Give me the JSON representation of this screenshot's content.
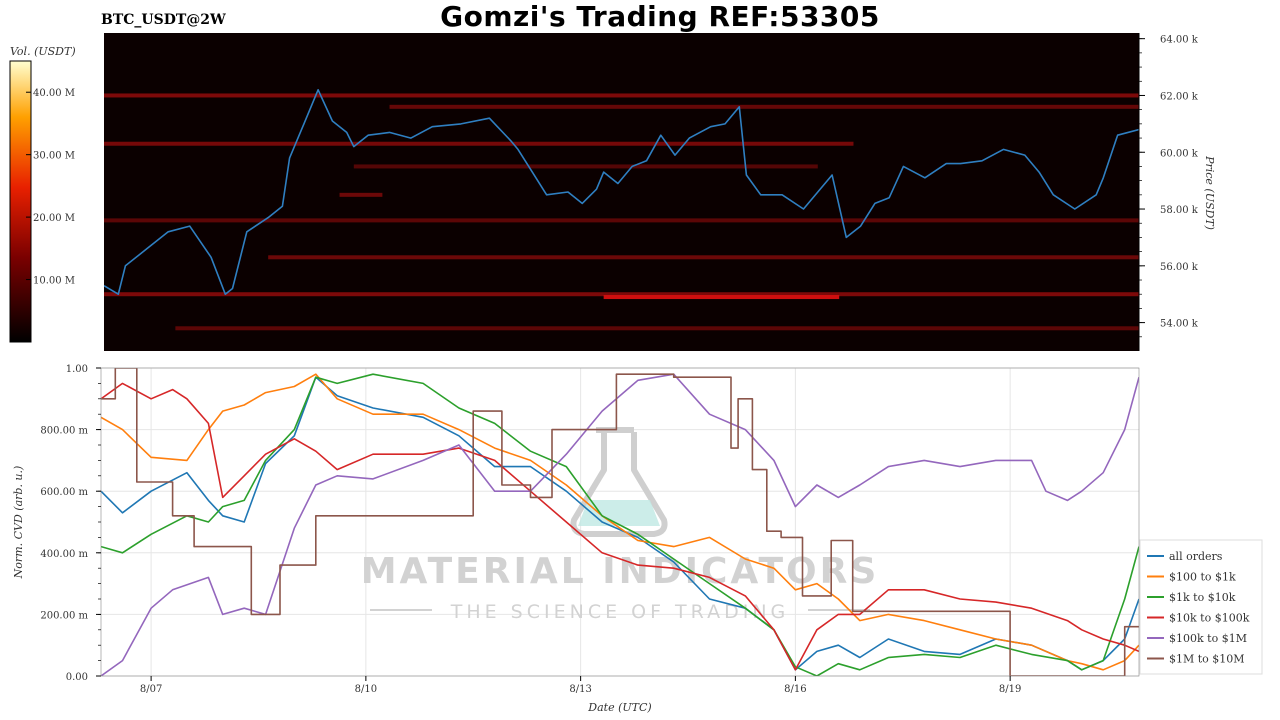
{
  "header": {
    "title": "Gomzi's Trading REF:53305",
    "symbol": "BTC_USDT@2W"
  },
  "watermark": {
    "line1": "MATERIAL INDICATORS",
    "line2": "THE SCIENCE OF TRADING"
  },
  "colors": {
    "price_line": "#2f7fc1",
    "heatmap_bg": "#0b0000",
    "heatmap_hot": "#d81010"
  },
  "chart_data": [
    {
      "type": "heatmap",
      "title": "",
      "colorbar": {
        "label": "Vol. (USDT)",
        "ticks": [
          "10.00 M",
          "20.00 M",
          "30.00 M",
          "40.00 M"
        ],
        "tick_values": [
          10,
          20,
          30,
          40
        ],
        "range": [
          0,
          45
        ]
      },
      "ylabel": "Price (USDT)",
      "ylim": [
        53000,
        64200
      ],
      "y_ticks": [
        "54.00 k",
        "56.00 k",
        "58.00 k",
        "60.00 k",
        "62.00 k",
        "64.00 k"
      ],
      "y_tick_values": [
        54000,
        56000,
        58000,
        60000,
        62000,
        64000
      ],
      "xlim": [
        0,
        14.5
      ],
      "price_series": {
        "x": [
          0.0,
          0.2,
          0.3,
          0.6,
          0.9,
          1.2,
          1.5,
          1.7,
          1.8,
          2.0,
          2.3,
          2.5,
          2.6,
          2.8,
          3.0,
          3.2,
          3.4,
          3.5,
          3.7,
          4.0,
          4.3,
          4.6,
          5.0,
          5.4,
          5.7,
          5.8,
          6.0,
          6.2,
          6.5,
          6.7,
          6.9,
          7.0,
          7.2,
          7.4,
          7.6,
          7.8,
          8.0,
          8.2,
          8.5,
          8.7,
          8.9,
          9.0,
          9.2,
          9.5,
          9.8,
          10.0,
          10.2,
          10.4,
          10.6,
          10.8,
          11.0,
          11.2,
          11.5,
          11.8,
          12.0,
          12.3,
          12.6,
          12.9,
          13.1,
          13.3,
          13.6,
          13.9,
          14.0,
          14.2,
          14.5
        ],
        "y": [
          55300,
          55000,
          56000,
          56600,
          57200,
          57400,
          56300,
          55000,
          55200,
          57200,
          57700,
          58100,
          59800,
          61000,
          62200,
          61100,
          60700,
          60200,
          60600,
          60700,
          60500,
          60900,
          61000,
          61200,
          60400,
          60100,
          59300,
          58500,
          58600,
          58200,
          58700,
          59300,
          58900,
          59500,
          59700,
          60600,
          59900,
          60500,
          60900,
          61000,
          61600,
          59200,
          58500,
          58500,
          58000,
          58600,
          59200,
          57000,
          57400,
          58200,
          58400,
          59500,
          59100,
          59600,
          59600,
          59700,
          60100,
          59900,
          59300,
          58500,
          58000,
          58500,
          59100,
          60600,
          60800
        ]
      },
      "liquidity_bands": [
        {
          "price": 62000,
          "start": 0.0,
          "end": 14.5,
          "volume": 9
        },
        {
          "price": 61600,
          "start": 4.0,
          "end": 14.5,
          "volume": 6
        },
        {
          "price": 60300,
          "start": 0.0,
          "end": 10.5,
          "volume": 8
        },
        {
          "price": 59500,
          "start": 3.5,
          "end": 10.0,
          "volume": 4
        },
        {
          "price": 58500,
          "start": 3.3,
          "end": 3.9,
          "volume": 7
        },
        {
          "price": 57600,
          "start": 0.0,
          "end": 14.5,
          "volume": 5
        },
        {
          "price": 56300,
          "start": 2.3,
          "end": 14.5,
          "volume": 7
        },
        {
          "price": 55000,
          "start": 0.0,
          "end": 14.5,
          "volume": 9
        },
        {
          "price": 54900,
          "start": 7.0,
          "end": 10.3,
          "volume": 22
        },
        {
          "price": 53800,
          "start": 1.0,
          "end": 14.5,
          "volume": 5
        }
      ]
    },
    {
      "type": "line",
      "title": "",
      "xlabel": "Date (UTC)",
      "ylabel": "Norm. CVD (arb. u.)",
      "ylim": [
        0,
        1
      ],
      "xlim": [
        0,
        14.5
      ],
      "x_ticks": [
        "8/07",
        "8/10",
        "8/13",
        "8/16",
        "8/19"
      ],
      "x_tick_values": [
        0.7,
        3.7,
        6.7,
        9.7,
        12.7
      ],
      "y_ticks": [
        "0.00",
        "200.00 m",
        "400.00 m",
        "600.00 m",
        "800.00 m",
        "1.00"
      ],
      "y_tick_values": [
        0,
        0.2,
        0.4,
        0.6,
        0.8,
        1.0
      ],
      "legend": "right",
      "series": [
        {
          "name": "all orders",
          "color": "#1f77b4",
          "x": [
            0,
            0.3,
            0.7,
            1.2,
            1.5,
            1.7,
            2.0,
            2.3,
            2.7,
            3.0,
            3.3,
            3.8,
            4.5,
            5.0,
            5.5,
            6.0,
            6.5,
            7.0,
            7.5,
            8.0,
            8.5,
            9.0,
            9.4,
            9.7,
            10.0,
            10.3,
            10.6,
            11.0,
            11.5,
            12.0,
            12.5,
            13.0,
            13.5,
            13.7,
            14.0,
            14.3,
            14.5
          ],
          "y": [
            0.6,
            0.53,
            0.6,
            0.66,
            0.57,
            0.52,
            0.5,
            0.69,
            0.78,
            0.97,
            0.91,
            0.87,
            0.84,
            0.78,
            0.68,
            0.68,
            0.6,
            0.5,
            0.45,
            0.37,
            0.25,
            0.22,
            0.15,
            0.02,
            0.08,
            0.1,
            0.06,
            0.12,
            0.08,
            0.07,
            0.12,
            0.1,
            0.05,
            0.02,
            0.05,
            0.12,
            0.25
          ]
        },
        {
          "name": "$100 to $1k",
          "color": "#ff7f0e",
          "x": [
            0,
            0.3,
            0.7,
            1.2,
            1.5,
            1.7,
            2.0,
            2.3,
            2.7,
            3.0,
            3.3,
            3.8,
            4.5,
            5.0,
            5.5,
            6.0,
            6.5,
            7.0,
            7.5,
            8.0,
            8.5,
            9.0,
            9.4,
            9.7,
            10.0,
            10.3,
            10.6,
            11.0,
            11.5,
            12.0,
            12.5,
            13.0,
            13.5,
            13.7,
            14.0,
            14.3,
            14.5
          ],
          "y": [
            0.84,
            0.8,
            0.71,
            0.7,
            0.8,
            0.86,
            0.88,
            0.92,
            0.94,
            0.98,
            0.9,
            0.85,
            0.85,
            0.8,
            0.74,
            0.7,
            0.62,
            0.52,
            0.44,
            0.42,
            0.45,
            0.38,
            0.35,
            0.28,
            0.3,
            0.25,
            0.18,
            0.2,
            0.18,
            0.15,
            0.12,
            0.1,
            0.05,
            0.04,
            0.02,
            0.05,
            0.1
          ]
        },
        {
          "name": "$1k to $10k",
          "color": "#2ca02c",
          "x": [
            0,
            0.3,
            0.7,
            1.2,
            1.5,
            1.7,
            2.0,
            2.3,
            2.7,
            3.0,
            3.3,
            3.8,
            4.5,
            5.0,
            5.5,
            6.0,
            6.5,
            7.0,
            7.5,
            8.0,
            8.5,
            9.0,
            9.4,
            9.7,
            10.0,
            10.3,
            10.6,
            11.0,
            11.5,
            12.0,
            12.5,
            13.0,
            13.5,
            13.7,
            14.0,
            14.3,
            14.5
          ],
          "y": [
            0.42,
            0.4,
            0.46,
            0.52,
            0.5,
            0.55,
            0.57,
            0.7,
            0.8,
            0.97,
            0.95,
            0.98,
            0.95,
            0.87,
            0.82,
            0.73,
            0.68,
            0.52,
            0.46,
            0.38,
            0.3,
            0.22,
            0.15,
            0.03,
            0.0,
            0.04,
            0.02,
            0.06,
            0.07,
            0.06,
            0.1,
            0.07,
            0.05,
            0.02,
            0.05,
            0.25,
            0.42
          ]
        },
        {
          "name": "$10k to $100k",
          "color": "#d62728",
          "x": [
            0,
            0.3,
            0.7,
            1.0,
            1.2,
            1.5,
            1.7,
            2.0,
            2.3,
            2.7,
            3.0,
            3.3,
            3.8,
            4.5,
            5.0,
            5.5,
            6.0,
            6.5,
            7.0,
            7.5,
            8.0,
            8.5,
            9.0,
            9.4,
            9.7,
            10.0,
            10.3,
            10.6,
            11.0,
            11.5,
            12.0,
            12.5,
            13.0,
            13.5,
            13.7,
            14.0,
            14.3,
            14.5
          ],
          "y": [
            0.9,
            0.95,
            0.9,
            0.93,
            0.9,
            0.82,
            0.58,
            0.65,
            0.72,
            0.77,
            0.73,
            0.67,
            0.72,
            0.72,
            0.74,
            0.7,
            0.6,
            0.5,
            0.4,
            0.36,
            0.35,
            0.32,
            0.26,
            0.15,
            0.02,
            0.15,
            0.2,
            0.2,
            0.28,
            0.28,
            0.25,
            0.24,
            0.22,
            0.18,
            0.15,
            0.12,
            0.1,
            0.08
          ]
        },
        {
          "name": "$100k to $1M",
          "color": "#9467bd",
          "x": [
            0,
            0.3,
            0.7,
            1.0,
            1.5,
            1.7,
            2.0,
            2.3,
            2.7,
            3.0,
            3.3,
            3.8,
            4.5,
            5.0,
            5.5,
            6.0,
            6.5,
            7.0,
            7.5,
            8.0,
            8.5,
            9.0,
            9.4,
            9.7,
            10.0,
            10.3,
            10.6,
            11.0,
            11.5,
            12.0,
            12.5,
            13.0,
            13.2,
            13.5,
            13.7,
            14.0,
            14.3,
            14.5
          ],
          "y": [
            0.0,
            0.05,
            0.22,
            0.28,
            0.32,
            0.2,
            0.22,
            0.2,
            0.48,
            0.62,
            0.65,
            0.64,
            0.7,
            0.75,
            0.6,
            0.6,
            0.72,
            0.86,
            0.96,
            0.98,
            0.85,
            0.8,
            0.7,
            0.55,
            0.62,
            0.58,
            0.62,
            0.68,
            0.7,
            0.68,
            0.7,
            0.7,
            0.6,
            0.57,
            0.6,
            0.66,
            0.8,
            0.97
          ]
        },
        {
          "name": "$1M to $10M",
          "color": "#8c564b",
          "step": true,
          "x": [
            0,
            0.2,
            0.5,
            1.0,
            1.3,
            1.7,
            2.1,
            2.5,
            3.0,
            4.0,
            5.2,
            5.6,
            6.0,
            6.3,
            7.2,
            8.0,
            8.8,
            8.9,
            9.1,
            9.3,
            9.5,
            9.8,
            10.2,
            10.5,
            10.7,
            11.2,
            11.8,
            12.7,
            13.5,
            14.0,
            14.3,
            14.5
          ],
          "y": [
            0.9,
            1.0,
            0.63,
            0.52,
            0.42,
            0.42,
            0.2,
            0.36,
            0.52,
            0.52,
            0.86,
            0.62,
            0.58,
            0.8,
            0.98,
            0.97,
            0.74,
            0.9,
            0.67,
            0.47,
            0.45,
            0.26,
            0.44,
            0.21,
            0.21,
            0.21,
            0.21,
            0.0,
            0.0,
            0.0,
            0.16,
            0.16
          ]
        }
      ]
    }
  ]
}
